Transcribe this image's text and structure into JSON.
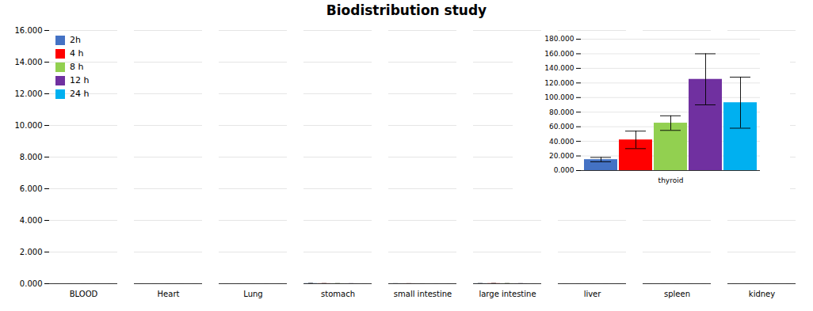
{
  "chart_data": [
    {
      "type": "bar",
      "title": "Biodistribution study",
      "categories": [
        "BLOOD",
        "Heart",
        "Lung",
        "stomach",
        "small intestine",
        "large intestine",
        "liver",
        "spleen",
        "kidney"
      ],
      "series": [
        {
          "name": "2h",
          "color": "#4472C4",
          "values": [
            0.23,
            0.12,
            0.2,
            11.2,
            2.55,
            6.5,
            0.13,
            0.18,
            0.23
          ],
          "errors": [
            0.05,
            0.03,
            0.04,
            2.8,
            0.1,
            0.8,
            0.03,
            0.04,
            0.05
          ]
        },
        {
          "name": "4 h",
          "color": "#FF0000",
          "values": [
            0.38,
            0.16,
            0.3,
            6.2,
            2.52,
            9.05,
            0.18,
            0.23,
            0.31
          ],
          "errors": [
            0.08,
            0.03,
            0.06,
            0.5,
            0.1,
            1.8,
            0.04,
            0.05,
            0.06
          ]
        },
        {
          "name": "8 h",
          "color": "#92D050",
          "values": [
            0.31,
            0.13,
            0.24,
            5.0,
            0.95,
            5.8,
            0.12,
            0.17,
            0.27
          ],
          "errors": [
            0.06,
            0.02,
            0.05,
            0.4,
            0.15,
            0.5,
            0.02,
            0.03,
            0.04
          ]
        },
        {
          "name": "12 h",
          "color": "#7030A0",
          "values": [
            0.27,
            0.11,
            0.22,
            2.55,
            0.23,
            3.45,
            0.1,
            0.15,
            0.23
          ],
          "errors": [
            0.05,
            0.02,
            0.04,
            0.2,
            0.05,
            0.6,
            0.015,
            0.025,
            0.04
          ]
        },
        {
          "name": "24 h",
          "color": "#00B0F0",
          "values": [
            0.08,
            0.07,
            0.15,
            0.12,
            0.03,
            0.06,
            0.06,
            0.08,
            0.13
          ],
          "errors": [
            0.015,
            0.01,
            0.03,
            0.03,
            0.01,
            0.02,
            0.01,
            0.015,
            0.02
          ]
        }
      ],
      "ylim": [
        0,
        16000
      ],
      "yticks": [
        {
          "value": 0,
          "label": "0.000"
        },
        {
          "value": 2000,
          "label": "2.000"
        },
        {
          "value": 4000,
          "label": "4.000"
        },
        {
          "value": 6000,
          "label": "6.000"
        },
        {
          "value": 8000,
          "label": "8.000"
        },
        {
          "value": 10000,
          "label": "10.000"
        },
        {
          "value": 12000,
          "label": "12.000"
        },
        {
          "value": 14000,
          "label": "14.000"
        },
        {
          "value": 16000,
          "label": "16.000"
        }
      ],
      "grid": true,
      "legend": "upper left"
    },
    {
      "type": "bar",
      "categories": [
        "thyroid"
      ],
      "series": [
        {
          "name": "2h",
          "color": "#4472C4",
          "values": [
            15000
          ],
          "errors": [
            3000
          ]
        },
        {
          "name": "4 h",
          "color": "#FF0000",
          "values": [
            42000
          ],
          "errors": [
            12000
          ]
        },
        {
          "name": "8 h",
          "color": "#92D050",
          "values": [
            65000
          ],
          "errors": [
            10000
          ]
        },
        {
          "name": "12 h",
          "color": "#7030A0",
          "values": [
            125000
          ],
          "errors": [
            35000
          ]
        },
        {
          "name": "24 h",
          "color": "#00B0F0",
          "values": [
            93000
          ],
          "errors": [
            35000
          ]
        }
      ],
      "ylim": [
        0,
        180000
      ],
      "yticks": [
        {
          "value": 0,
          "label": "0.000"
        },
        {
          "value": 20000,
          "label": "20.000"
        },
        {
          "value": 40000,
          "label": "40.000"
        },
        {
          "value": 60000,
          "label": "60.000"
        },
        {
          "value": 80000,
          "label": "80.000"
        },
        {
          "value": 100000,
          "label": "100.000"
        },
        {
          "value": 120000,
          "label": "120.000"
        },
        {
          "value": 140000,
          "label": "140.000"
        },
        {
          "value": 160000,
          "label": "160.000"
        },
        {
          "value": 180000,
          "label": "180.000"
        }
      ],
      "grid": true
    }
  ]
}
